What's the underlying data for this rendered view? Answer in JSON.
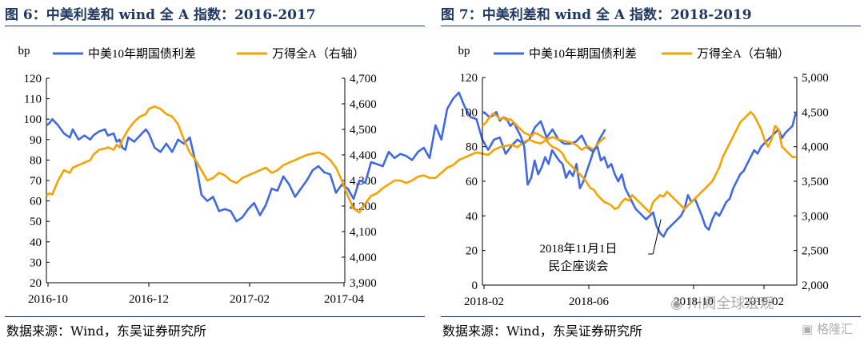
{
  "figures": [
    {
      "title": "图 6：中美利差和 wind 全 A 指数：2016-2017",
      "source": "数据来源：Wind，东吴证券研究所"
    },
    {
      "title": "图 7：中美利差和 wind 全 A 指数：2018-2019",
      "source": "数据来源：Wind，东吴证券研究所"
    }
  ],
  "watermarks": {
    "wechat": "川阅全球宏观",
    "gelonghui": "格隆汇"
  },
  "chart_data": [
    {
      "type": "line",
      "title": "图 6：中美利差和 wind 全 A 指数：2016-2017",
      "unit_label": "bp",
      "x_ticks": [
        "2016-10",
        "2016-12",
        "2017-02",
        "2017-04"
      ],
      "y_left": {
        "ticks": [
          "20",
          "30",
          "40",
          "50",
          "60",
          "70",
          "80",
          "90",
          "100",
          "110",
          "120"
        ],
        "lim": [
          20,
          120
        ]
      },
      "y_right": {
        "ticks": [
          "3,900",
          "4,000",
          "4,100",
          "4,200",
          "4,300",
          "4,400",
          "4,500",
          "4,600",
          "4,700"
        ],
        "lim": [
          3900,
          4700
        ]
      },
      "grid": false,
      "legend_position": "top",
      "series": [
        {
          "name": "中美10年期国债利差",
          "axis": "left",
          "color": "#4169e1",
          "x": [
            0,
            1,
            2,
            4,
            6,
            8,
            9,
            11,
            13,
            15,
            16,
            18,
            20,
            21,
            23,
            24,
            25,
            26,
            27,
            28,
            30,
            32,
            34,
            35,
            37,
            39,
            41,
            43,
            45,
            47,
            49,
            51,
            53,
            55,
            57,
            59,
            61,
            63,
            65,
            67,
            69,
            71,
            73,
            75,
            77,
            79,
            81,
            83,
            85,
            87,
            89,
            91,
            93,
            95,
            97,
            99,
            101,
            103,
            105,
            107,
            109,
            111,
            113,
            115,
            117,
            119,
            121,
            123,
            125,
            127,
            129,
            131,
            133,
            135,
            137,
            139,
            141,
            143,
            145,
            147,
            149,
            151,
            153,
            155,
            157,
            159,
            161,
            163,
            165,
            167,
            169,
            171,
            173,
            175,
            177,
            179,
            181,
            183,
            185,
            187,
            189,
            191
          ],
          "y": [
            97,
            98,
            100,
            97,
            93,
            91,
            95,
            90,
            92,
            90,
            92,
            94,
            95,
            92,
            93,
            89,
            90,
            86,
            85,
            91,
            89,
            92,
            95,
            93,
            86,
            84,
            88,
            84,
            90,
            88,
            91,
            79,
            63,
            60,
            62,
            55,
            56,
            55,
            50,
            52,
            56,
            59,
            53,
            58,
            66,
            65,
            72,
            68,
            62,
            66,
            70,
            75,
            77,
            74,
            73,
            64,
            68,
            66,
            61,
            70,
            69,
            79,
            78,
            77,
            84,
            81,
            83,
            82,
            80,
            84,
            86,
            81,
            97,
            90,
            105,
            110,
            113,
            106,
            101,
            100,
            90,
            85,
            90,
            91,
            83,
            87,
            90,
            88,
            90,
            96,
            99,
            91,
            95,
            90,
            88,
            88,
            89,
            92,
            86,
            84,
            90,
            95
          ]
        },
        {
          "name": "万得全A（右轴）",
          "axis": "right",
          "color": "#f5a300",
          "x": [
            0,
            1,
            2,
            4,
            6,
            8,
            9,
            11,
            13,
            15,
            16,
            18,
            20,
            21,
            23,
            24,
            25,
            26,
            27,
            28,
            30,
            32,
            34,
            35,
            37,
            39,
            41,
            43,
            45,
            47,
            49,
            51,
            53,
            55,
            57,
            59,
            61,
            63,
            65,
            67,
            69,
            71,
            73,
            75,
            77,
            79,
            81,
            83,
            85,
            87,
            89,
            91,
            93,
            95,
            97,
            99,
            101,
            103,
            105,
            107,
            109,
            111,
            113,
            115,
            117,
            119,
            121,
            123,
            125,
            127,
            129,
            131,
            133,
            135,
            137,
            139,
            141,
            143,
            145,
            147,
            149,
            151,
            153,
            155,
            157,
            159,
            161,
            163,
            165,
            167,
            169,
            171,
            173,
            175,
            177,
            179,
            181,
            183,
            185,
            187,
            189,
            191
          ],
          "y": [
            4240,
            4250,
            4245,
            4300,
            4340,
            4330,
            4350,
            4360,
            4370,
            4380,
            4400,
            4420,
            4425,
            4430,
            4420,
            4440,
            4430,
            4460,
            4480,
            4500,
            4530,
            4550,
            4560,
            4580,
            4590,
            4580,
            4560,
            4550,
            4520,
            4460,
            4410,
            4380,
            4340,
            4300,
            4310,
            4330,
            4320,
            4300,
            4290,
            4310,
            4320,
            4330,
            4340,
            4350,
            4330,
            4340,
            4360,
            4370,
            4380,
            4390,
            4400,
            4405,
            4410,
            4400,
            4380,
            4350,
            4300,
            4240,
            4190,
            4175,
            4210,
            4240,
            4250,
            4270,
            4285,
            4300,
            4300,
            4290,
            4300,
            4315,
            4320,
            4310,
            4310,
            4330,
            4350,
            4360,
            4380,
            4390,
            4400,
            4410,
            4405,
            4400,
            4420,
            4430,
            4435,
            4440,
            4430,
            4450,
            4460,
            4450,
            4445,
            4460,
            4470,
            4460,
            4455,
            4450,
            4440,
            4420,
            4435,
            4420,
            4450,
            4470
          ]
        }
      ]
    },
    {
      "type": "line",
      "title": "图 7：中美利差和 wind 全 A 指数：2018-2019",
      "unit_label": "bp",
      "x_ticks": [
        "2018-02",
        "2018-06",
        "2018-10",
        "2019-02"
      ],
      "y_left": {
        "ticks": [
          "0",
          "20",
          "40",
          "60",
          "80",
          "100",
          "120"
        ],
        "lim": [
          0,
          120
        ]
      },
      "y_right": {
        "ticks": [
          "2,000",
          "2,500",
          "3,000",
          "3,500",
          "4,000",
          "4,500",
          "5,000"
        ],
        "lim": [
          2000,
          5000
        ]
      },
      "grid": false,
      "legend_position": "top",
      "annotation": {
        "text_lines": [
          "2018年11月1日",
          "民企座谈会"
        ],
        "target_x": 205,
        "target_y": 38
      },
      "series": [
        {
          "name": "中美10年期国债利差",
          "axis": "left",
          "color": "#4169e1",
          "x": [
            0,
            4,
            8,
            12,
            16,
            20,
            24,
            28,
            32,
            36,
            40,
            44,
            48,
            52,
            56,
            60,
            64,
            68,
            72,
            76,
            80,
            84,
            88,
            92,
            96,
            100,
            104,
            108,
            112,
            116,
            120,
            124,
            128,
            132,
            136,
            140,
            144,
            148,
            152,
            156,
            160,
            164,
            168,
            172,
            176,
            180,
            184,
            188,
            192,
            196,
            200,
            204,
            208,
            212,
            216,
            220,
            224,
            228,
            232,
            236,
            240,
            244,
            248,
            252,
            256,
            260,
            264,
            268,
            272,
            276,
            280,
            284,
            288,
            292,
            296,
            300,
            304,
            308,
            312,
            316,
            320,
            324,
            328,
            332,
            336,
            340,
            344,
            348,
            352,
            356,
            360
          ],
          "y": [
            100,
            99,
            97,
            98,
            100,
            95,
            97,
            96,
            92,
            94,
            90,
            86,
            80,
            58,
            62,
            72,
            64,
            68,
            74,
            70,
            78,
            75,
            72,
            70,
            62,
            66,
            63,
            70,
            56,
            60,
            66,
            72,
            78,
            80,
            72,
            74,
            68,
            70,
            64,
            60,
            64,
            56,
            52,
            48,
            44,
            42,
            40,
            38,
            40,
            42,
            34,
            30,
            28,
            32,
            34,
            36,
            38,
            40,
            44,
            52,
            48,
            50,
            45,
            40,
            34,
            32,
            38,
            42,
            40,
            44,
            48,
            50,
            56,
            60,
            64,
            66,
            70,
            74,
            78,
            76,
            80,
            82,
            84,
            86,
            88,
            90,
            85,
            88,
            90,
            92,
            100
          ]
        },
        {
          "name": "万得全A（右轴）",
          "axis": "right",
          "color": "#f5a300",
          "x": [
            0,
            4,
            8,
            12,
            16,
            20,
            24,
            28,
            32,
            36,
            40,
            44,
            48,
            52,
            56,
            60,
            64,
            68,
            72,
            76,
            80,
            84,
            88,
            92,
            96,
            100,
            104,
            108,
            112,
            116,
            120,
            124,
            128,
            132,
            136,
            140,
            144,
            148,
            152,
            156,
            160,
            164,
            168,
            172,
            176,
            180,
            184,
            188,
            192,
            196,
            200,
            204,
            208,
            212,
            216,
            220,
            224,
            228,
            232,
            236,
            240,
            244,
            248,
            252,
            256,
            260,
            264,
            268,
            272,
            276,
            280,
            284,
            288,
            292,
            296,
            300,
            304,
            308,
            312,
            316,
            320,
            324,
            328,
            332,
            336,
            340,
            344,
            348,
            352,
            356,
            360
          ],
          "y": [
            4300,
            4350,
            4420,
            4480,
            4450,
            4400,
            4420,
            4380,
            4400,
            4350,
            4300,
            4250,
            4200,
            4180,
            4150,
            4200,
            4180,
            4150,
            4120,
            4050,
            4000,
            3980,
            3950,
            3900,
            3800,
            3750,
            3700,
            3650,
            3600,
            3550,
            3480,
            3400,
            3380,
            3300,
            3250,
            3200,
            3180,
            3150,
            3100,
            3120,
            3200,
            3250,
            3220,
            3300,
            3250,
            3200,
            3150,
            3100,
            3050,
            3200,
            3250,
            3300,
            3280,
            3350,
            3300,
            3250,
            3200,
            3150,
            3100,
            3150,
            3200,
            3250,
            3300,
            3350,
            3400,
            3450,
            3500,
            3600,
            3700,
            3850,
            3950,
            4050,
            4150,
            4250,
            4350,
            4400,
            4450,
            4500,
            4450,
            4350,
            4250,
            4100,
            4000,
            4100,
            4300,
            4250,
            4000,
            3950,
            3900,
            3850,
            3850
          ]
        }
      ]
    }
  ]
}
